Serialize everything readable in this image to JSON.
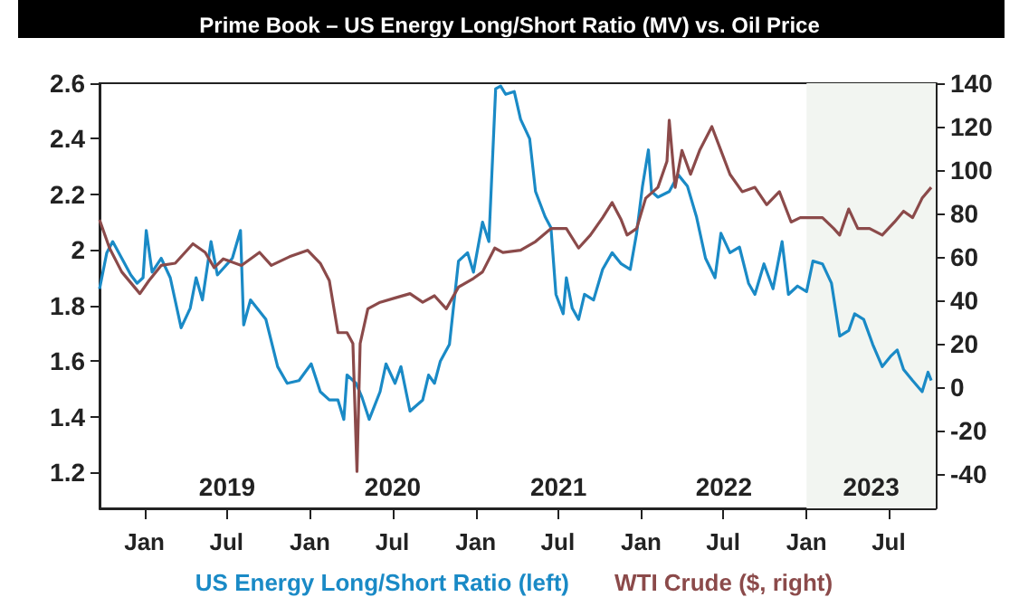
{
  "chart_data": {
    "type": "line",
    "title": "Prime Book – US Energy Long/Short Ratio (MV) vs. Oil Price",
    "xlim": [
      "2018-09-24",
      "2023-10-13"
    ],
    "xticks": [
      {
        "value": "2019-01-01",
        "label": "Jan"
      },
      {
        "value": "2019-07-01",
        "label": "Jul"
      },
      {
        "value": "2020-01-01",
        "label": "Jan"
      },
      {
        "value": "2020-07-01",
        "label": "Jul"
      },
      {
        "value": "2021-01-01",
        "label": "Jan"
      },
      {
        "value": "2021-07-01",
        "label": "Jul"
      },
      {
        "value": "2022-01-01",
        "label": "Jan"
      },
      {
        "value": "2022-07-01",
        "label": "Jul"
      },
      {
        "value": "2023-01-01",
        "label": "Jan"
      },
      {
        "value": "2023-07-01",
        "label": "Jul"
      }
    ],
    "ylim": [
      1.07,
      2.6
    ],
    "yticks": [
      1.2,
      1.4,
      1.6,
      1.8,
      2,
      2.2,
      2.4,
      2.6
    ],
    "y2lim": [
      -56,
      140
    ],
    "y2ticks": [
      -40,
      -20,
      0,
      20,
      40,
      60,
      80,
      100,
      120,
      140
    ],
    "grid": false,
    "legend": "bottom",
    "line_style": "solid",
    "marker": "none",
    "bands": [
      {
        "axis": "x",
        "from": "2023-01-01",
        "to": "2023-10-13",
        "color": "#f2f5f1"
      }
    ],
    "annotations": [
      "2019",
      "2020",
      "2021",
      "2022",
      "2023"
    ],
    "series": [
      {
        "name": "US Energy Long/Short Ratio (left)",
        "color": "#1a8ac6",
        "x": [
          "2018-09-24",
          "2018-10-10",
          "2018-10-23",
          "2018-11-12",
          "2018-12-02",
          "2018-12-16",
          "2018-12-29",
          "2019-01-05",
          "2019-01-18",
          "2019-02-07",
          "2019-02-27",
          "2019-03-23",
          "2019-04-12",
          "2019-04-25",
          "2019-05-09",
          "2019-05-28",
          "2019-06-11",
          "2019-07-14",
          "2019-08-01",
          "2019-08-08",
          "2019-08-23",
          "2019-09-26",
          "2019-10-22",
          "2019-11-12",
          "2019-12-08",
          "2020-01-04",
          "2020-01-24",
          "2020-02-13",
          "2020-03-03",
          "2020-03-16",
          "2020-03-23",
          "2020-04-12",
          "2020-04-25",
          "2020-05-11",
          "2020-06-04",
          "2020-06-17",
          "2020-07-07",
          "2020-07-20",
          "2020-08-09",
          "2020-09-06",
          "2020-09-19",
          "2020-10-02",
          "2020-10-15",
          "2020-11-04",
          "2020-11-24",
          "2020-12-14",
          "2020-12-27",
          "2021-01-16",
          "2021-01-30",
          "2021-02-14",
          "2021-02-25",
          "2021-03-08",
          "2021-03-27",
          "2021-04-10",
          "2021-04-30",
          "2021-05-13",
          "2021-06-03",
          "2021-06-16",
          "2021-06-27",
          "2021-07-13",
          "2021-07-20",
          "2021-08-02",
          "2021-08-16",
          "2021-08-29",
          "2021-09-18",
          "2021-10-08",
          "2021-10-29",
          "2021-11-18",
          "2021-12-08",
          "2021-12-22",
          "2022-01-04",
          "2022-01-17",
          "2022-01-24",
          "2022-02-07",
          "2022-03-04",
          "2022-03-24",
          "2022-04-13",
          "2022-05-03",
          "2022-05-23",
          "2022-06-13",
          "2022-06-26",
          "2022-07-16",
          "2022-08-06",
          "2022-08-26",
          "2022-09-09",
          "2022-09-29",
          "2022-10-19",
          "2022-11-08",
          "2022-11-22",
          "2022-12-12",
          "2023-01-01",
          "2023-01-15",
          "2023-02-05",
          "2023-02-25",
          "2023-03-15",
          "2023-04-04",
          "2023-04-17",
          "2023-05-07",
          "2023-05-27",
          "2023-06-17",
          "2023-07-07",
          "2023-07-20",
          "2023-08-03",
          "2023-08-23",
          "2023-09-13",
          "2023-09-26",
          "2023-10-03"
        ],
        "values": [
          1.86,
          1.99,
          2.03,
          1.97,
          1.91,
          1.88,
          1.9,
          2.07,
          1.92,
          1.97,
          1.9,
          1.72,
          1.79,
          1.9,
          1.82,
          2.03,
          1.91,
          1.97,
          2.07,
          1.73,
          1.82,
          1.75,
          1.58,
          1.52,
          1.53,
          1.59,
          1.49,
          1.46,
          1.46,
          1.39,
          1.55,
          1.52,
          1.47,
          1.39,
          1.49,
          1.59,
          1.52,
          1.58,
          1.42,
          1.46,
          1.55,
          1.52,
          1.6,
          1.66,
          1.96,
          1.99,
          1.92,
          2.1,
          2.03,
          2.58,
          2.59,
          2.56,
          2.57,
          2.47,
          2.4,
          2.21,
          2.12,
          2.08,
          1.84,
          1.77,
          1.9,
          1.79,
          1.75,
          1.84,
          1.82,
          1.93,
          1.99,
          1.95,
          1.93,
          2.06,
          2.23,
          2.36,
          2.21,
          2.19,
          2.21,
          2.27,
          2.23,
          2.12,
          1.97,
          1.9,
          2.06,
          1.99,
          2.01,
          1.88,
          1.84,
          1.95,
          1.86,
          2.03,
          1.84,
          1.87,
          1.85,
          1.96,
          1.95,
          1.88,
          1.69,
          1.71,
          1.77,
          1.75,
          1.66,
          1.58,
          1.62,
          1.64,
          1.57,
          1.53,
          1.49,
          1.56,
          1.53
        ]
      },
      {
        "name": "WTI Crude ($, right)",
        "color": "#8b4a4a",
        "axis": "y2",
        "x": [
          "2018-09-24",
          "2018-10-16",
          "2018-11-12",
          "2018-12-02",
          "2018-12-22",
          "2019-01-11",
          "2019-02-07",
          "2019-03-10",
          "2019-04-18",
          "2019-05-15",
          "2019-06-04",
          "2019-06-24",
          "2019-08-03",
          "2019-09-12",
          "2019-10-08",
          "2019-11-17",
          "2019-12-27",
          "2020-01-24",
          "2020-02-13",
          "2020-03-03",
          "2020-03-23",
          "2020-04-05",
          "2020-04-14",
          "2020-04-21",
          "2020-05-08",
          "2020-06-04",
          "2020-07-07",
          "2020-08-09",
          "2020-09-06",
          "2020-10-02",
          "2020-10-28",
          "2020-11-24",
          "2020-12-27",
          "2021-01-16",
          "2021-02-12",
          "2021-03-02",
          "2021-04-10",
          "2021-05-13",
          "2021-06-16",
          "2021-07-20",
          "2021-08-16",
          "2021-09-11",
          "2021-10-08",
          "2021-10-29",
          "2021-11-18",
          "2021-12-01",
          "2021-12-22",
          "2022-01-11",
          "2022-02-07",
          "2022-02-27",
          "2022-03-04",
          "2022-03-17",
          "2022-04-01",
          "2022-04-20",
          "2022-05-10",
          "2022-06-06",
          "2022-06-26",
          "2022-07-16",
          "2022-08-12",
          "2022-09-09",
          "2022-10-05",
          "2022-11-02",
          "2022-11-28",
          "2022-12-18",
          "2023-01-08",
          "2023-02-05",
          "2023-03-02",
          "2023-03-15",
          "2023-04-04",
          "2023-04-24",
          "2023-05-20",
          "2023-06-17",
          "2023-07-14",
          "2023-08-03",
          "2023-08-23",
          "2023-09-13",
          "2023-10-03"
        ],
        "values": [
          77,
          64,
          53,
          48,
          43,
          49,
          56,
          57,
          66,
          62,
          55,
          59,
          56,
          62,
          56,
          60,
          63,
          57,
          49,
          25,
          25,
          20,
          -39,
          20,
          36,
          39,
          41,
          43,
          39,
          42,
          36,
          46,
          50,
          53,
          64,
          62,
          63,
          67,
          73,
          73,
          64,
          70,
          78,
          85,
          77,
          70,
          73,
          87,
          92,
          104,
          123,
          92,
          109,
          98,
          109,
          120,
          109,
          98,
          90,
          92,
          84,
          90,
          76,
          78,
          78,
          78,
          73,
          70,
          82,
          73,
          73,
          70,
          76,
          81,
          78,
          87,
          92
        ]
      }
    ]
  }
}
